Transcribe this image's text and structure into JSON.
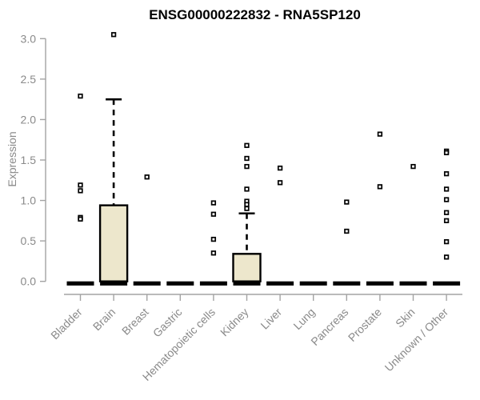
{
  "chart_data": {
    "type": "box",
    "title": "ENSG00000222832 - RNA5SP120",
    "ylabel": "Expression",
    "xlabel": "",
    "ylim": [
      0,
      3
    ],
    "yticks": [
      "0.0",
      "0.5",
      "1.0",
      "1.5",
      "2.0",
      "2.5",
      "3.0"
    ],
    "grid": false,
    "legend": "none",
    "categories": [
      "Bladder",
      "Brain",
      "Breast",
      "Gastric",
      "Hematopoietic cells",
      "Kidney",
      "Liver",
      "Lung",
      "Pancreas",
      "Prostate",
      "Skin",
      "Unknown / Other"
    ],
    "boxes": [
      {
        "category": "Bladder",
        "median": 0,
        "q1": 0,
        "q3": 0,
        "whisker_low": 0,
        "whisker_high": 0,
        "outliers": [
          2.29,
          1.19,
          1.12,
          0.79,
          0.77
        ]
      },
      {
        "category": "Brain",
        "median": 0,
        "q1": 0,
        "q3": 0.94,
        "whisker_low": 0,
        "whisker_high": 2.25,
        "outliers": [
          3.05
        ]
      },
      {
        "category": "Breast",
        "median": 0,
        "q1": 0,
        "q3": 0,
        "whisker_low": 0,
        "whisker_high": 0,
        "outliers": [
          1.29
        ]
      },
      {
        "category": "Gastric",
        "median": 0,
        "q1": 0,
        "q3": 0,
        "whisker_low": 0,
        "whisker_high": 0,
        "outliers": []
      },
      {
        "category": "Hematopoietic cells",
        "median": 0,
        "q1": 0,
        "q3": 0,
        "whisker_low": 0,
        "whisker_high": 0,
        "outliers": [
          0.97,
          0.83,
          0.52,
          0.35
        ]
      },
      {
        "category": "Kidney",
        "median": 0,
        "q1": 0,
        "q3": 0.34,
        "whisker_low": 0,
        "whisker_high": 0.84,
        "outliers": [
          1.68,
          1.52,
          1.42,
          1.14,
          0.99,
          0.95,
          0.9
        ]
      },
      {
        "category": "Liver",
        "median": 0,
        "q1": 0,
        "q3": 0,
        "whisker_low": 0,
        "whisker_high": 0,
        "outliers": [
          1.4,
          1.22
        ]
      },
      {
        "category": "Lung",
        "median": 0,
        "q1": 0,
        "q3": 0,
        "whisker_low": 0,
        "whisker_high": 0,
        "outliers": []
      },
      {
        "category": "Pancreas",
        "median": 0,
        "q1": 0,
        "q3": 0,
        "whisker_low": 0,
        "whisker_high": 0,
        "outliers": [
          0.98,
          0.62
        ]
      },
      {
        "category": "Prostate",
        "median": 0,
        "q1": 0,
        "q3": 0,
        "whisker_low": 0,
        "whisker_high": 0,
        "outliers": [
          1.82,
          1.17
        ]
      },
      {
        "category": "Skin",
        "median": 0,
        "q1": 0,
        "q3": 0,
        "whisker_low": 0,
        "whisker_high": 0,
        "outliers": [
          1.42
        ]
      },
      {
        "category": "Unknown / Other",
        "median": 0,
        "q1": 0,
        "q3": 0,
        "whisker_low": 0,
        "whisker_high": 0,
        "outliers": [
          1.61,
          1.59,
          1.33,
          1.14,
          1.01,
          0.85,
          0.75,
          0.49,
          0.3
        ]
      }
    ],
    "colors": {
      "box_fill": "#EDE7CC",
      "box_border": "#000000",
      "median_bar": "#000000",
      "outlier_fill": "#ffffff",
      "outlier_border": "#000000",
      "axis_line": "#a3a3a3",
      "axis_text": "#8a8a8a",
      "title_text": "#000000",
      "background": "#ffffff"
    }
  }
}
